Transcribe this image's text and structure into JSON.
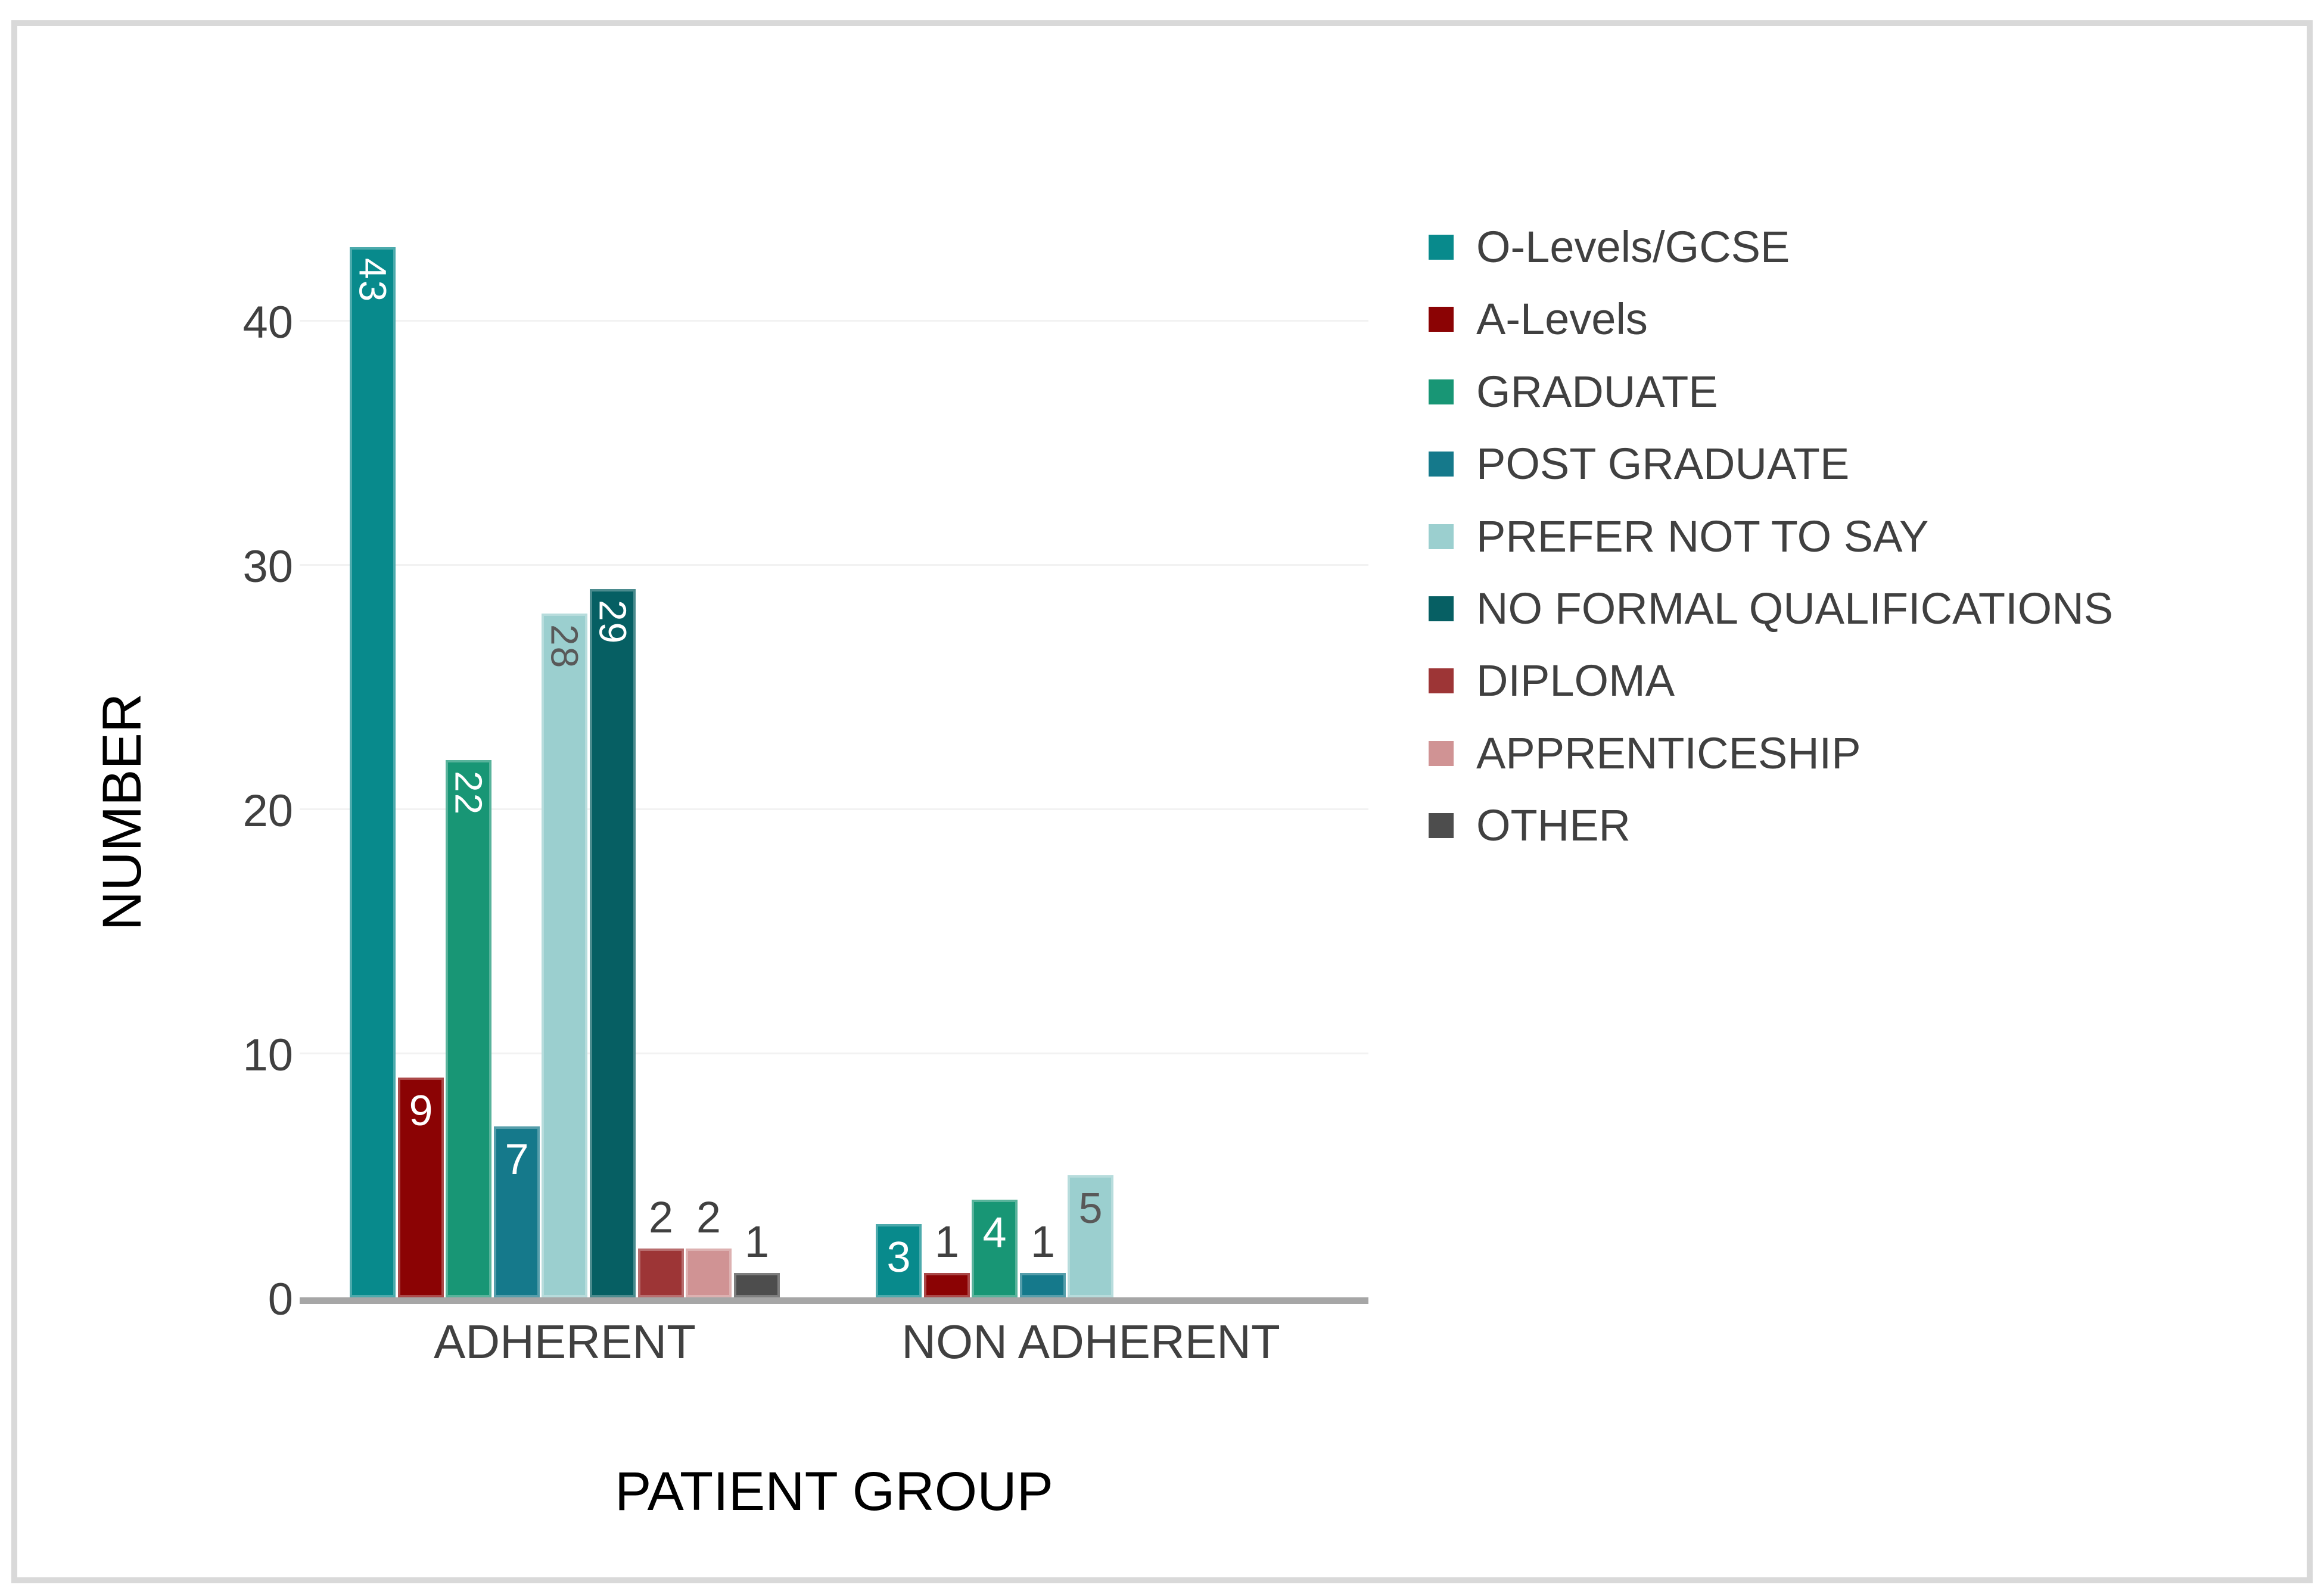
{
  "chart_data": {
    "type": "bar",
    "title": "",
    "xlabel": "PATIENT GROUP",
    "ylabel": "NUMBER",
    "categories": [
      "ADHERENT",
      "NON ADHERENT"
    ],
    "y_ticks": [
      0,
      10,
      20,
      30,
      40
    ],
    "ylim": [
      0,
      45
    ],
    "grid": true,
    "legend_position": "right",
    "series": [
      {
        "name": "O-Levels/GCSE",
        "color": "#088a8c",
        "values": [
          43,
          3
        ],
        "label_styles": [
          {
            "placement": "inside",
            "orientation": "vertical",
            "tone": "light"
          },
          {
            "placement": "inside",
            "orientation": "horizontal",
            "tone": "light"
          }
        ]
      },
      {
        "name": "A-Levels",
        "color": "#8b0304",
        "values": [
          9,
          1
        ],
        "label_styles": [
          {
            "placement": "inside",
            "orientation": "horizontal",
            "tone": "light"
          },
          {
            "placement": "above",
            "orientation": "horizontal",
            "tone": "dark"
          }
        ]
      },
      {
        "name": "GRADUATE",
        "color": "#189675",
        "values": [
          22,
          4
        ],
        "label_styles": [
          {
            "placement": "inside",
            "orientation": "vertical",
            "tone": "light"
          },
          {
            "placement": "inside",
            "orientation": "horizontal",
            "tone": "light"
          }
        ]
      },
      {
        "name": "POST GRADUATE",
        "color": "#15798b",
        "values": [
          7,
          1
        ],
        "label_styles": [
          {
            "placement": "inside",
            "orientation": "horizontal",
            "tone": "light"
          },
          {
            "placement": "above",
            "orientation": "horizontal",
            "tone": "dark"
          }
        ]
      },
      {
        "name": "PREFER NOT TO SAY",
        "color": "#9bcfcf",
        "values": [
          28,
          5
        ],
        "label_styles": [
          {
            "placement": "inside",
            "orientation": "vertical",
            "tone": "mid"
          },
          {
            "placement": "inside",
            "orientation": "horizontal",
            "tone": "mid"
          }
        ]
      },
      {
        "name": "NO FORMAL QUALIFICATIONS",
        "color": "#065f63",
        "values": [
          29,
          0
        ],
        "label_styles": [
          {
            "placement": "inside",
            "orientation": "vertical",
            "tone": "light"
          },
          null
        ]
      },
      {
        "name": "DIPLOMA",
        "color": "#9d3536",
        "values": [
          2,
          0
        ],
        "label_styles": [
          {
            "placement": "above",
            "orientation": "horizontal",
            "tone": "dark"
          },
          null
        ]
      },
      {
        "name": "APPRENTICESHIP",
        "color": "#d09394",
        "values": [
          2,
          0
        ],
        "label_styles": [
          {
            "placement": "above",
            "orientation": "horizontal",
            "tone": "dark"
          },
          null
        ]
      },
      {
        "name": "OTHER",
        "color": "#4d4d4d",
        "values": [
          1,
          0
        ],
        "label_styles": [
          {
            "placement": "above",
            "orientation": "horizontal",
            "tone": "dark"
          },
          null
        ]
      }
    ]
  },
  "style": {
    "background": "#ffffff",
    "frame_border": "#d9d9d9",
    "axis_line": "#a6a6a6",
    "gridline": "#f2f2f2",
    "text": "#404040",
    "label_light": "#ffffff",
    "label_mid": "#595959",
    "label_dark": "#404040"
  }
}
